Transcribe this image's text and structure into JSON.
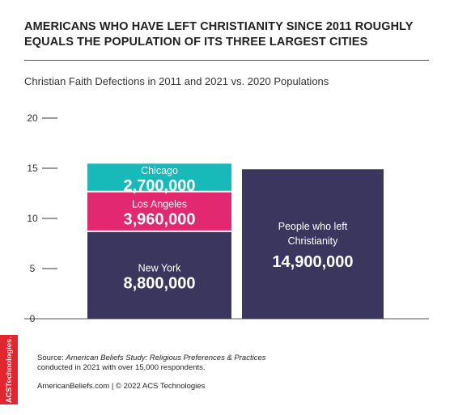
{
  "title": "AMERICANS WHO HAVE LEFT CHRISTIANITY SINCE 2011 ROUGHLY EQUALS THE POPULATION OF ITS THREE LARGEST CITIES",
  "subtitle": "Christian Faith Defections in 2011 and 2021 vs. 2020 Populations",
  "chart_data": {
    "type": "bar",
    "ylim": [
      0,
      20
    ],
    "yticks": [
      "0",
      "5",
      "10",
      "15",
      "20"
    ],
    "stacked_bar": {
      "segments": [
        {
          "name": "New York",
          "value": 8.8,
          "label": "8,800,000",
          "color": "#3b365d"
        },
        {
          "name": "Los Angeles",
          "value": 3.96,
          "label": "3,960,000",
          "color": "#e2286f"
        },
        {
          "name": "Chicago",
          "value": 2.7,
          "label": "2,700,000",
          "color": "#18b9b9"
        }
      ]
    },
    "single_bar": {
      "name_lines": [
        "People who left",
        "Christianity"
      ],
      "value": 14.9,
      "label": "14,900,000",
      "color": "#3b365d"
    },
    "grid": false
  },
  "source": {
    "prefix": "Source: ",
    "study": "American Beliefs Study: Religious Preferences & Practices",
    "line2": "conducted in 2021 with over 15,000 respondents."
  },
  "footer": "AmericanBeliefs.com | © 2022 ACS Technologies",
  "brand": "ACSTechnologies."
}
